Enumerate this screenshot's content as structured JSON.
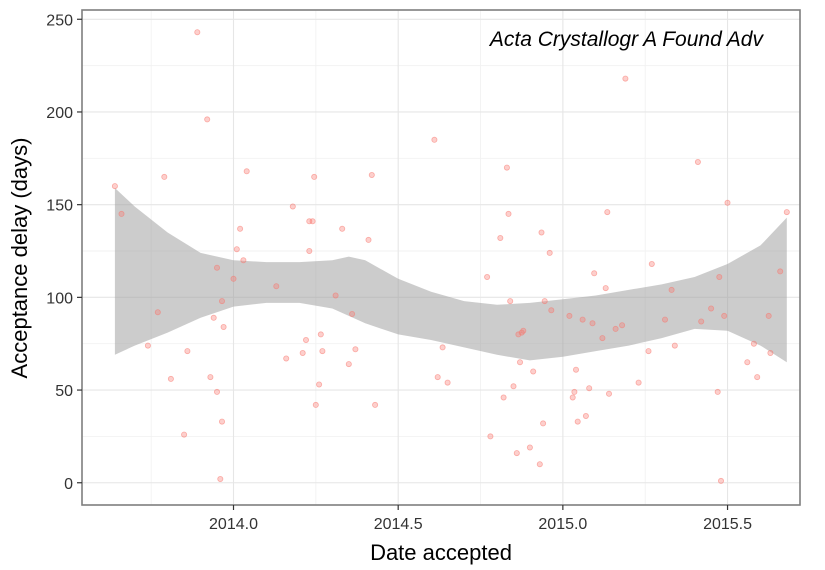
{
  "chart_data": {
    "type": "scatter",
    "annotation": "Acta Crystallogr A Found Adv",
    "xlabel": "Date accepted",
    "ylabel": "Acceptance delay (days)",
    "xlim": [
      2013.54,
      2015.72
    ],
    "ylim": [
      -12,
      255
    ],
    "x_ticks": [
      2014.0,
      2014.5,
      2015.0,
      2015.5
    ],
    "x_tick_labels": [
      "2014.0",
      "2014.5",
      "2015.0",
      "2015.5"
    ],
    "y_ticks": [
      0,
      50,
      100,
      150,
      200,
      250
    ],
    "y_tick_labels": [
      "0",
      "50",
      "100",
      "150",
      "200",
      "250"
    ],
    "grid": true,
    "point_color": "#f8766d",
    "band_color": "#999999",
    "points": [
      [
        2013.64,
        160
      ],
      [
        2013.66,
        145
      ],
      [
        2013.74,
        74
      ],
      [
        2013.77,
        92
      ],
      [
        2013.79,
        165
      ],
      [
        2013.81,
        56
      ],
      [
        2013.85,
        26
      ],
      [
        2013.86,
        71
      ],
      [
        2013.89,
        243
      ],
      [
        2013.92,
        196
      ],
      [
        2013.93,
        57
      ],
      [
        2013.94,
        89
      ],
      [
        2013.95,
        49
      ],
      [
        2013.95,
        116
      ],
      [
        2013.96,
        2
      ],
      [
        2013.965,
        33
      ],
      [
        2013.965,
        98
      ],
      [
        2013.97,
        84
      ],
      [
        2014.0,
        110
      ],
      [
        2014.01,
        126
      ],
      [
        2014.02,
        137
      ],
      [
        2014.03,
        120
      ],
      [
        2014.04,
        168
      ],
      [
        2014.13,
        106
      ],
      [
        2014.16,
        67
      ],
      [
        2014.18,
        149
      ],
      [
        2014.21,
        70
      ],
      [
        2014.22,
        77
      ],
      [
        2014.23,
        125
      ],
      [
        2014.23,
        141
      ],
      [
        2014.24,
        141
      ],
      [
        2014.245,
        165
      ],
      [
        2014.25,
        42
      ],
      [
        2014.26,
        53
      ],
      [
        2014.265,
        80
      ],
      [
        2014.27,
        71
      ],
      [
        2014.31,
        101
      ],
      [
        2014.33,
        137
      ],
      [
        2014.35,
        64
      ],
      [
        2014.36,
        91
      ],
      [
        2014.37,
        72
      ],
      [
        2014.41,
        131
      ],
      [
        2014.42,
        166
      ],
      [
        2014.43,
        42
      ],
      [
        2014.61,
        185
      ],
      [
        2014.62,
        57
      ],
      [
        2014.635,
        73
      ],
      [
        2014.65,
        54
      ],
      [
        2014.77,
        111
      ],
      [
        2014.78,
        25
      ],
      [
        2014.81,
        132
      ],
      [
        2014.82,
        46
      ],
      [
        2014.83,
        170
      ],
      [
        2014.835,
        145
      ],
      [
        2014.84,
        98
      ],
      [
        2014.85,
        52
      ],
      [
        2014.86,
        16
      ],
      [
        2014.865,
        80
      ],
      [
        2014.87,
        65
      ],
      [
        2014.875,
        81
      ],
      [
        2014.88,
        82
      ],
      [
        2014.9,
        19
      ],
      [
        2014.91,
        60
      ],
      [
        2014.93,
        10
      ],
      [
        2014.935,
        135
      ],
      [
        2014.94,
        32
      ],
      [
        2014.945,
        98
      ],
      [
        2014.96,
        124
      ],
      [
        2014.965,
        93
      ],
      [
        2015.02,
        90
      ],
      [
        2015.03,
        46
      ],
      [
        2015.035,
        49
      ],
      [
        2015.04,
        61
      ],
      [
        2015.045,
        33
      ],
      [
        2015.06,
        88
      ],
      [
        2015.07,
        36
      ],
      [
        2015.08,
        51
      ],
      [
        2015.09,
        86
      ],
      [
        2015.095,
        113
      ],
      [
        2015.12,
        78
      ],
      [
        2015.13,
        105
      ],
      [
        2015.135,
        146
      ],
      [
        2015.14,
        48
      ],
      [
        2015.16,
        83
      ],
      [
        2015.18,
        85
      ],
      [
        2015.19,
        218
      ],
      [
        2015.23,
        54
      ],
      [
        2015.26,
        71
      ],
      [
        2015.27,
        118
      ],
      [
        2015.31,
        88
      ],
      [
        2015.33,
        104
      ],
      [
        2015.34,
        74
      ],
      [
        2015.41,
        173
      ],
      [
        2015.42,
        87
      ],
      [
        2015.45,
        94
      ],
      [
        2015.47,
        49
      ],
      [
        2015.475,
        111
      ],
      [
        2015.48,
        1
      ],
      [
        2015.49,
        90
      ],
      [
        2015.5,
        151
      ],
      [
        2015.56,
        65
      ],
      [
        2015.58,
        75
      ],
      [
        2015.59,
        57
      ],
      [
        2015.625,
        90
      ],
      [
        2015.63,
        70
      ],
      [
        2015.66,
        114
      ],
      [
        2015.68,
        146
      ]
    ],
    "smooth_band": {
      "x": [
        2013.64,
        2013.7,
        2013.8,
        2013.9,
        2014.0,
        2014.1,
        2014.2,
        2014.3,
        2014.35,
        2014.4,
        2014.5,
        2014.6,
        2014.7,
        2014.8,
        2014.9,
        2015.0,
        2015.1,
        2015.2,
        2015.3,
        2015.4,
        2015.5,
        2015.6,
        2015.68
      ],
      "upper": [
        159,
        149,
        135,
        124,
        120,
        119,
        119,
        120,
        122,
        120,
        110,
        103,
        98,
        96,
        97,
        99,
        101,
        104,
        107,
        111,
        118,
        128,
        143
      ],
      "lower": [
        69,
        74,
        81,
        89,
        95,
        97,
        97,
        94,
        90,
        86,
        80,
        77,
        73,
        69,
        66,
        68,
        71,
        74,
        78,
        83,
        82,
        74,
        65
      ]
    }
  }
}
